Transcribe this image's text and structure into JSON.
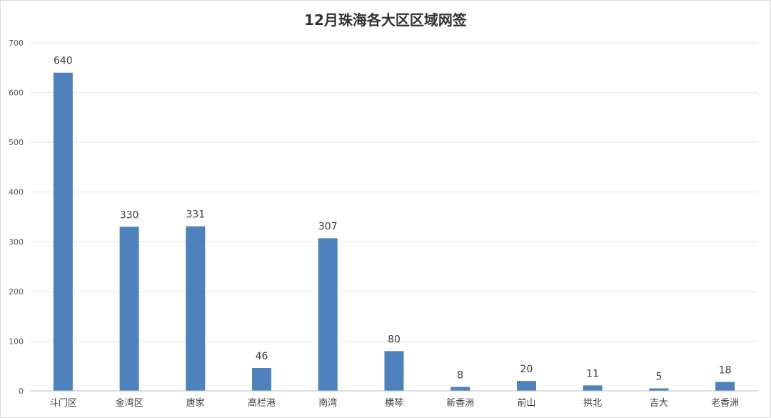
{
  "chart_data": {
    "type": "bar",
    "title": "12月珠海各大区区域网签",
    "categories": [
      "斗门区",
      "金湾区",
      "唐家",
      "高栏港",
      "南湾",
      "横琴",
      "新香洲",
      "前山",
      "拱北",
      "吉大",
      "老香洲"
    ],
    "series": [
      {
        "values": [
          640,
          330,
          331,
          46,
          307,
          80,
          8,
          20,
          11,
          5,
          18
        ]
      }
    ],
    "xlabel": "",
    "ylabel": "",
    "ylim": [
      0,
      700
    ],
    "yticks": [
      0,
      100,
      200,
      300,
      400,
      500,
      600,
      700
    ],
    "grid": true,
    "legend": "none",
    "colors": {
      "bar": "#4f81bd",
      "grid": "#e6e6e6",
      "axis": "#bfbfbf"
    }
  }
}
